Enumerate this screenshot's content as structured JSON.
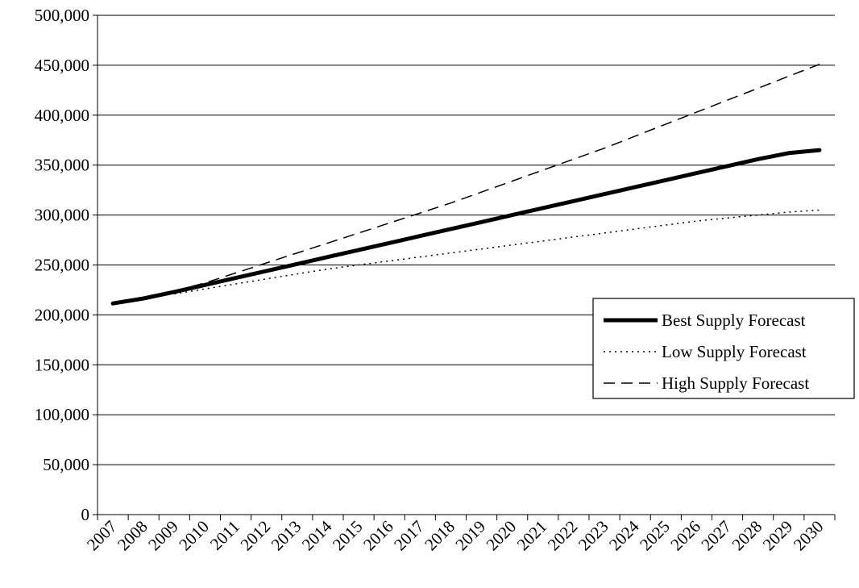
{
  "chart_data": {
    "type": "line",
    "title": "",
    "xlabel": "",
    "ylabel": "",
    "categories": [
      "2007",
      "2008",
      "2009",
      "2010",
      "2011",
      "2012",
      "2013",
      "2014",
      "2015",
      "2016",
      "2017",
      "2018",
      "2019",
      "2020",
      "2021",
      "2022",
      "2023",
      "2024",
      "2025",
      "2026",
      "2027",
      "2028",
      "2029",
      "2030"
    ],
    "ylim": [
      0,
      500000
    ],
    "yticks": [
      0,
      50000,
      100000,
      150000,
      200000,
      250000,
      300000,
      350000,
      400000,
      450000,
      500000
    ],
    "ytick_labels": [
      "0",
      "50,000",
      "100,000",
      "150,000",
      "200,000",
      "250,000",
      "300,000",
      "350,000",
      "400,000",
      "450,000",
      "500,000"
    ],
    "grid": true,
    "legend_position": "right",
    "series": [
      {
        "name": "Best Supply Forecast",
        "style": "solid-thick",
        "color": "#000000",
        "values": [
          211500,
          216500,
          223000,
          230000,
          237000,
          244000,
          251000,
          258000,
          265000,
          272000,
          279000,
          286000,
          293000,
          300000,
          307000,
          314000,
          321000,
          328000,
          335000,
          342000,
          349000,
          356000,
          362000,
          365000
        ]
      },
      {
        "name": "Low Supply Forecast",
        "style": "dotted",
        "color": "#000000",
        "values": [
          null,
          null,
          221000,
          226000,
          231000,
          236000,
          241000,
          246000,
          250000,
          254000,
          258000,
          262000,
          266000,
          270000,
          274000,
          278000,
          282000,
          286000,
          290000,
          294000,
          297000,
          300000,
          303000,
          305000
        ]
      },
      {
        "name": "High Supply Forecast",
        "style": "dashed",
        "color": "#000000",
        "values": [
          null,
          null,
          224000,
          232000,
          242000,
          252000,
          262000,
          272000,
          282000,
          292000,
          302000,
          312000,
          323000,
          334000,
          345000,
          356000,
          367000,
          379000,
          391000,
          403000,
          415000,
          427000,
          439000,
          451000
        ]
      }
    ]
  }
}
